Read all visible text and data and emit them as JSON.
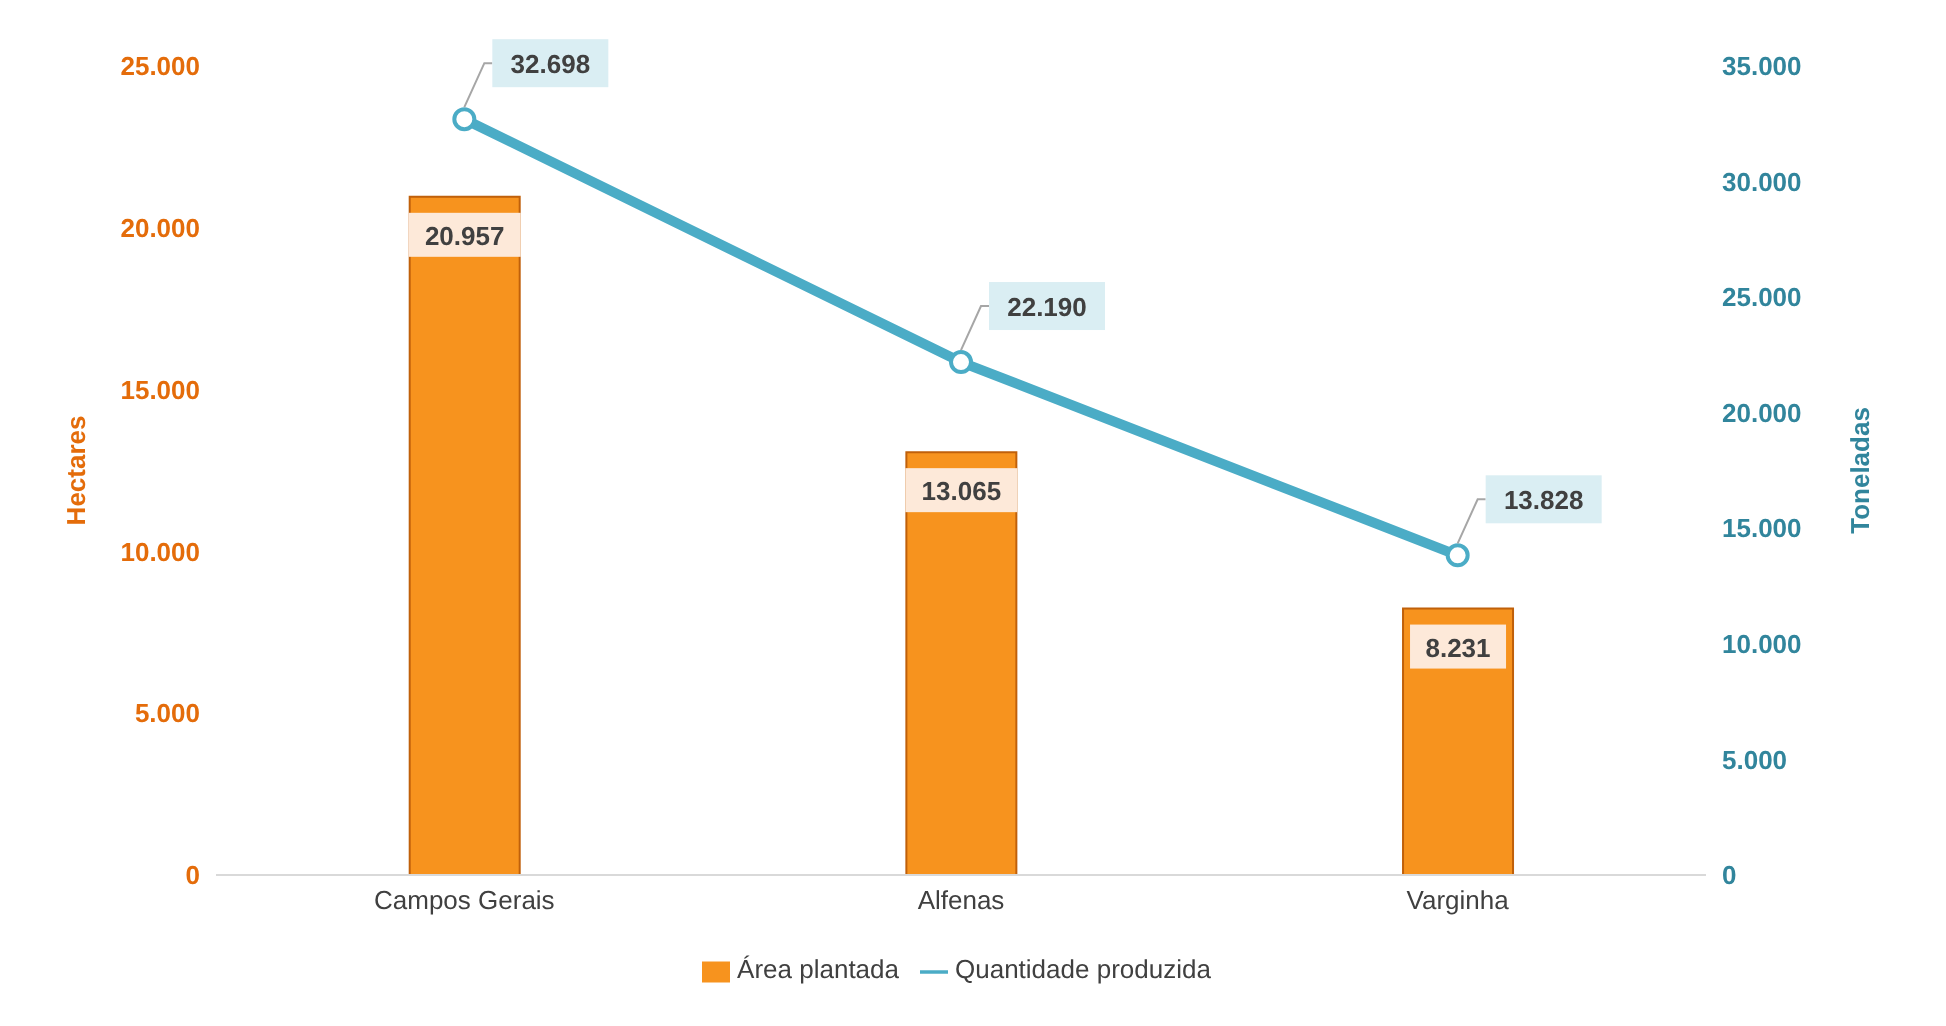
{
  "chart_data": {
    "type": "bar",
    "categories": [
      "Campos Gerais",
      "Alfenas",
      "Varginha"
    ],
    "series": [
      {
        "name": "Área plantada",
        "color": "#f7931e",
        "values": [
          20957,
          13065,
          8231
        ],
        "value_labels": [
          "20.957",
          "13.065",
          "8.231"
        ]
      },
      {
        "name": "Quantidade produzida",
        "type": "line",
        "axis": "y2",
        "color": "#4bacc6",
        "values": [
          32698,
          22190,
          13828
        ],
        "value_labels": [
          "32.698",
          "22.190",
          "13.828"
        ]
      }
    ],
    "ylabel": "Hectares",
    "y2label": "Toneladas",
    "ylim": [
      0,
      25000
    ],
    "yticks": [
      {
        "value": 0,
        "label": "0"
      },
      {
        "value": 5000,
        "label": "5.000"
      },
      {
        "value": 10000,
        "label": "10.000"
      },
      {
        "value": 15000,
        "label": "15.000"
      },
      {
        "value": 20000,
        "label": "20.000"
      },
      {
        "value": 25000,
        "label": "25.000"
      }
    ],
    "y2lim": [
      0,
      35000
    ],
    "y2ticks": [
      {
        "value": 0,
        "label": "0"
      },
      {
        "value": 5000,
        "label": "5.000"
      },
      {
        "value": 10000,
        "label": "10.000"
      },
      {
        "value": 15000,
        "label": "15.000"
      },
      {
        "value": 20000,
        "label": "20.000"
      },
      {
        "value": 25000,
        "label": "25.000"
      },
      {
        "value": 30000,
        "label": "30.000"
      },
      {
        "value": 35000,
        "label": "35.000"
      }
    ],
    "grid": false,
    "legend": "bottom",
    "marker": "circle",
    "line_style": "solid"
  }
}
